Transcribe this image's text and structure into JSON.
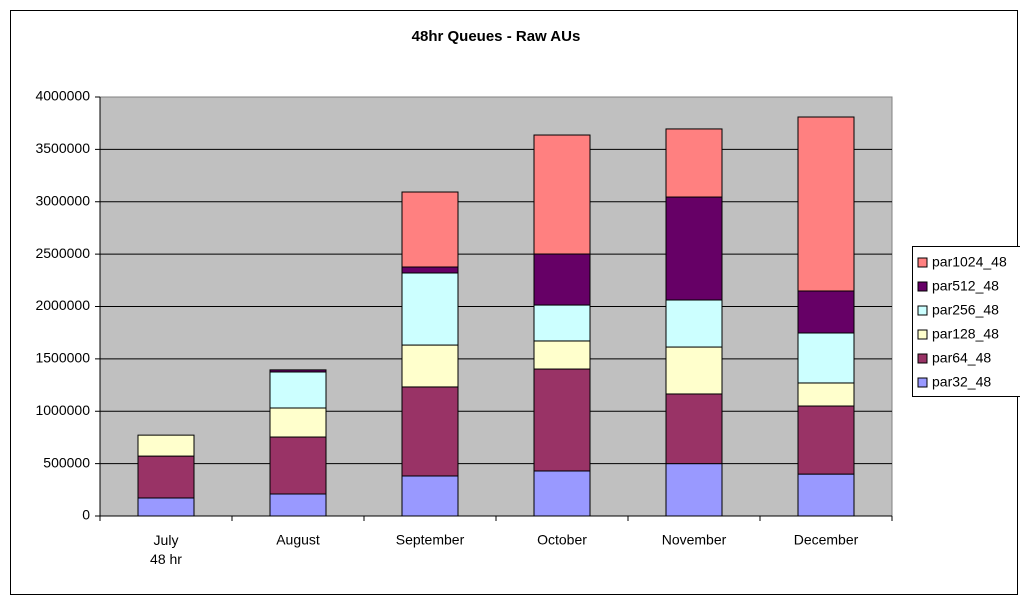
{
  "chart_data": {
    "type": "stacked_bar",
    "title": "48hr Queues - Raw AUs",
    "categories": [
      "July\n48 hr",
      "August",
      "September",
      "October",
      "November",
      "December"
    ],
    "series": [
      {
        "name": "par32_48",
        "color": "#9999ff",
        "values": [
          172000,
          210000,
          382000,
          430000,
          500000,
          400000
        ]
      },
      {
        "name": "par64_48",
        "color": "#993366",
        "values": [
          400000,
          544000,
          850000,
          973000,
          665000,
          650000
        ]
      },
      {
        "name": "par128_48",
        "color": "#ffffcc",
        "values": [
          200000,
          277000,
          400000,
          268000,
          448000,
          220000
        ]
      },
      {
        "name": "par256_48",
        "color": "#ccffff",
        "values": [
          0,
          344000,
          688000,
          343000,
          449000,
          477000
        ]
      },
      {
        "name": "par512_48",
        "color": "#660066",
        "values": [
          0,
          20000,
          57000,
          487000,
          983000,
          401000
        ]
      },
      {
        "name": "par1024_48",
        "color": "#ff8080",
        "values": [
          0,
          0,
          716000,
          1136000,
          650000,
          1661000
        ]
      }
    ],
    "ylim": [
      0,
      4000000
    ],
    "yticks": [
      0,
      500000,
      1000000,
      1500000,
      2000000,
      2500000,
      3000000,
      3500000,
      4000000
    ],
    "grid": true,
    "legend": "right"
  }
}
